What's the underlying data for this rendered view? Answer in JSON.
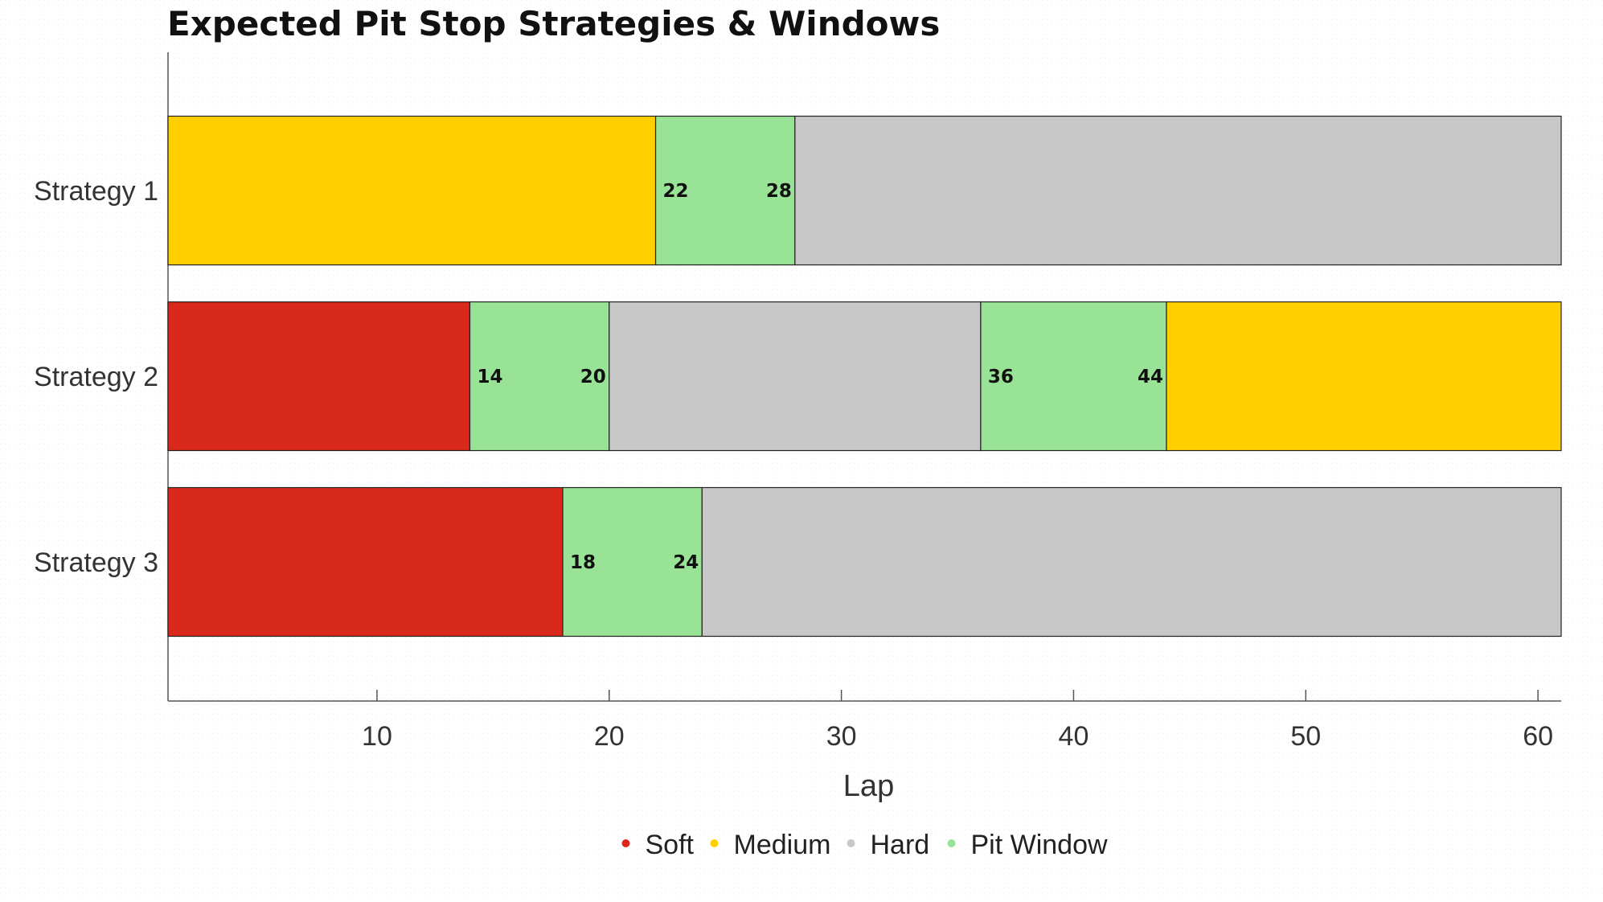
{
  "chart_data": {
    "type": "bar",
    "orientation": "horizontal-stacked",
    "title": "Expected Pit Stop Strategies & Windows",
    "xlabel": "Lap",
    "ylabel": "",
    "xlim": [
      1,
      61
    ],
    "x_ticks": [
      10,
      20,
      30,
      40,
      50,
      60
    ],
    "grid": false,
    "legend_position": "bottom",
    "legend": [
      {
        "name": "Soft",
        "color": "#d9291c"
      },
      {
        "name": "Medium",
        "color": "#ffcf00"
      },
      {
        "name": "Hard",
        "color": "#c8c8c8"
      },
      {
        "name": "Pit Window",
        "color": "#98e395"
      }
    ],
    "categories": [
      "Strategy 1",
      "Strategy 2",
      "Strategy 3"
    ],
    "strategies": [
      {
        "name": "Strategy 1",
        "segments": [
          {
            "kind": "Medium",
            "start": 1,
            "end": 22
          },
          {
            "kind": "Pit Window",
            "start": 22,
            "end": 28,
            "labels": [
              "22",
              "28"
            ]
          },
          {
            "kind": "Hard",
            "start": 28,
            "end": 61
          }
        ]
      },
      {
        "name": "Strategy 2",
        "segments": [
          {
            "kind": "Soft",
            "start": 1,
            "end": 14
          },
          {
            "kind": "Pit Window",
            "start": 14,
            "end": 20,
            "labels": [
              "14",
              "20"
            ]
          },
          {
            "kind": "Hard",
            "start": 20,
            "end": 36
          },
          {
            "kind": "Pit Window",
            "start": 36,
            "end": 44,
            "labels": [
              "36",
              "44"
            ]
          },
          {
            "kind": "Medium",
            "start": 44,
            "end": 61
          }
        ]
      },
      {
        "name": "Strategy 3",
        "segments": [
          {
            "kind": "Soft",
            "start": 1,
            "end": 18
          },
          {
            "kind": "Pit Window",
            "start": 18,
            "end": 24,
            "labels": [
              "18",
              "24"
            ]
          },
          {
            "kind": "Hard",
            "start": 24,
            "end": 61
          }
        ]
      }
    ]
  }
}
